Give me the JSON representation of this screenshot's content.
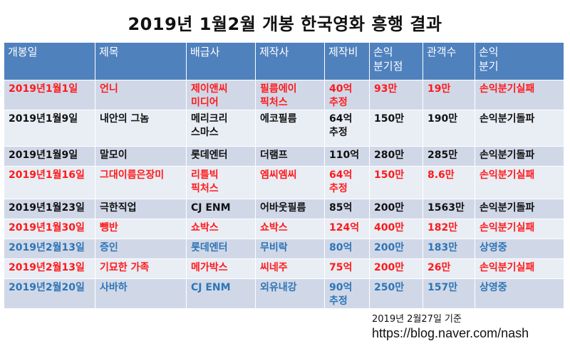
{
  "title": "2019년 1월2월 개봉 한국영화 흥행 결과",
  "columns": [
    "개봉일",
    "제목",
    "배급사",
    "제작사",
    "제작비",
    "손익\n분기점",
    "관객수",
    "손익\n분기"
  ],
  "rows": [
    {
      "cells": [
        "2019년1월1일",
        "언니",
        "제이앤씨\n미디어",
        "필름에이\n픽처스",
        "40억\n추정",
        "93만",
        "19만",
        "손익분기실패"
      ],
      "color": "red"
    },
    {
      "cells": [
        "2019년1월9일",
        "내안의 그놈",
        "메리크리\n스마스",
        "에코필름",
        "64억\n추정",
        "150만",
        "190만",
        "손익분기돌파"
      ],
      "color": "black"
    },
    {
      "cells": [
        "2019년1월9일",
        "말모이",
        "롯데엔터",
        "더램프",
        "110억",
        "280만",
        "285만",
        "손익분기돌파"
      ],
      "color": "black"
    },
    {
      "cells": [
        "2019년1월16일",
        "그대이름은장미",
        "리틀빅\n픽처스",
        "엠씨엠씨",
        "64억\n추정",
        "150만",
        "8.6만",
        "손익분기실패"
      ],
      "color": "red"
    },
    {
      "cells": [
        "2019년1월23일",
        "극한직업",
        "CJ ENM",
        "어바웃필름",
        "85억",
        "200만",
        "1563만",
        "손익분기돌파"
      ],
      "color": "black"
    },
    {
      "cells": [
        "2019년1월30일",
        "뺑반",
        "쇼박스",
        "쇼박스",
        "124억",
        "400만",
        "182만",
        "손익분기실패"
      ],
      "color": "red"
    },
    {
      "cells": [
        "2019년2월13일",
        "증인",
        "롯데엔터",
        "무비락",
        "80억",
        "200만",
        "183만",
        "상영중"
      ],
      "color": "blue"
    },
    {
      "cells": [
        "2019년2월13일",
        "기묘한 가족",
        "메가박스",
        "씨네주",
        "75억",
        "200만",
        "26만",
        "손익분기실패"
      ],
      "color": "red"
    },
    {
      "cells": [
        "2019년2월20일",
        "사바하",
        "CJ ENM",
        "외유내강",
        "90억\n추정",
        "250만",
        "157만",
        "상영중"
      ],
      "color": "blue"
    }
  ],
  "footer": {
    "date_note": "2019년 2월27일 기준",
    "url": "https://blog.naver.com/nash"
  },
  "colors": {
    "header_bg": "#4f81bd",
    "row_odd": "#d0d8e8",
    "row_even": "#e9edf4",
    "red": "#ff1a1a",
    "black": "#111111",
    "blue": "#2e75b6"
  }
}
